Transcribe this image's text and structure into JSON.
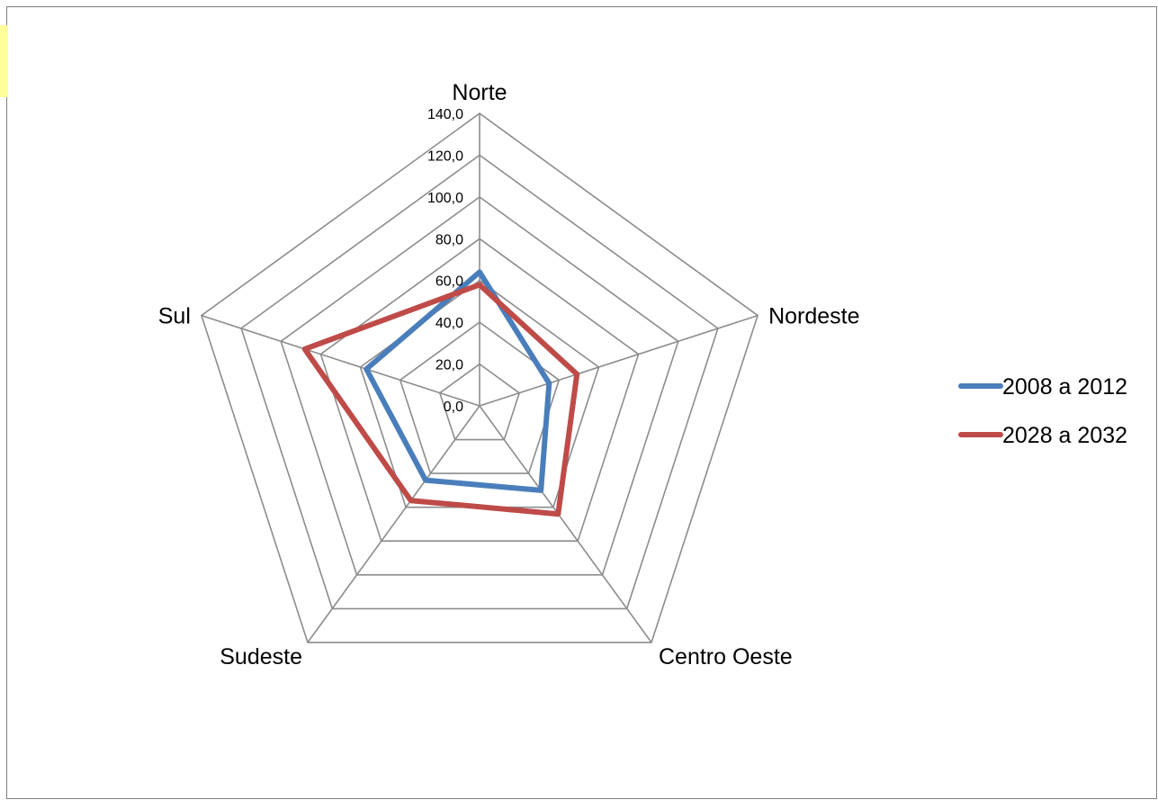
{
  "chart_data": {
    "type": "radar",
    "title": "",
    "categories": [
      "Norte",
      "Nordeste",
      "Centro Oeste",
      "Sudeste",
      "Sul"
    ],
    "series": [
      {
        "name": "2008 a 2012",
        "color": "#4a7ebb",
        "values": [
          64,
          35,
          50,
          44,
          57
        ]
      },
      {
        "name": "2028 a 2032",
        "color": "#be4b48",
        "values": [
          58,
          49,
          64,
          56,
          88
        ]
      }
    ],
    "rlim": [
      0,
      140
    ],
    "ticks": [
      "0,0",
      "20,0",
      "40,0",
      "60,0",
      "80,0",
      "100,0",
      "120,0",
      "140,0"
    ],
    "grid": true,
    "legend_position": "right"
  }
}
